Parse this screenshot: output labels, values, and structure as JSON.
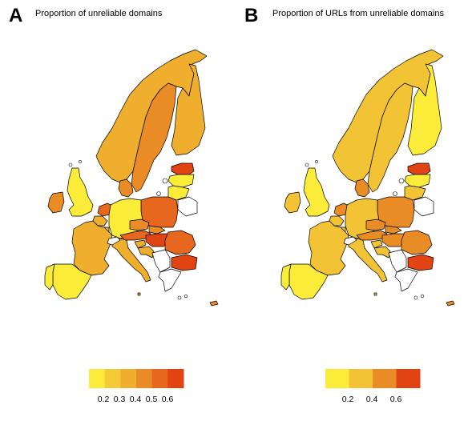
{
  "panels": [
    {
      "id": "A",
      "letter": "A",
      "title": "Proportion of unreliable domains",
      "legend": {
        "colors": [
          "#fbec3a",
          "#f4cb36",
          "#efae2e",
          "#ea8c26",
          "#e6671d",
          "#e24313"
        ],
        "ticks": [
          "0.2",
          "0.3",
          "0.4",
          "0.5",
          "0.6"
        ]
      }
    },
    {
      "id": "B",
      "letter": "B",
      "title": "Proportion of URLs from unreliable domains",
      "legend": {
        "colors": [
          "#fbec3a",
          "#f2c435",
          "#ea8c26",
          "#e24313"
        ],
        "ticks": [
          "0.2",
          "0.4",
          "0.6"
        ]
      }
    }
  ],
  "map_colors": {
    "A": {
      "norway": "#efae2e",
      "sweden": "#ea8c26",
      "finland": "#efae2e",
      "estonia": "#e24313",
      "latvia": "#fbec3a",
      "lithuania": "#fbec3a",
      "poland": "#e6671d",
      "germany": "#fbec3a",
      "denmark": "#ea8c26",
      "netherlands": "#e6671d",
      "belgium": "#efae2e",
      "luxembourg": "#efae2e",
      "france": "#efae2e",
      "uk": "#fbec3a",
      "ireland": "#ea8c26",
      "spain": "#fbec3a",
      "portugal": "#fbec3a",
      "italy": "#efae2e",
      "switzerland": "#ffffff",
      "austria": "#e6671d",
      "czechia": "#ea8c26",
      "slovakia": "#ea8c26",
      "hungary": "#e24313",
      "slovenia": "#efae2e",
      "croatia": "#efae2e",
      "romania": "#e6671d",
      "bulgaria": "#e24313",
      "greece": "#ffffff",
      "balkans": "#ffffff",
      "cyprus": "#ea8c26",
      "malta": "#efae2e",
      "belarus": "#ffffff"
    },
    "B": {
      "norway": "#f2c435",
      "sweden": "#f2c435",
      "finland": "#fbec3a",
      "estonia": "#e24313",
      "latvia": "#fbec3a",
      "lithuania": "#f2c435",
      "poland": "#ea8c26",
      "germany": "#f2c435",
      "denmark": "#ea8c26",
      "netherlands": "#ea8c26",
      "belgium": "#f2c435",
      "luxembourg": "#f2c435",
      "france": "#f2c435",
      "uk": "#fbec3a",
      "ireland": "#f2c435",
      "spain": "#fbec3a",
      "portugal": "#fbec3a",
      "italy": "#f2c435",
      "switzerland": "#ffffff",
      "austria": "#ea8c26",
      "czechia": "#ea8c26",
      "slovakia": "#ea8c26",
      "hungary": "#ea8c26",
      "slovenia": "#f2c435",
      "croatia": "#f2c435",
      "romania": "#ea8c26",
      "bulgaria": "#e24313",
      "greece": "#ffffff",
      "balkans": "#ffffff",
      "cyprus": "#ea8c26",
      "malta": "#f2c435",
      "belarus": "#ffffff"
    }
  }
}
